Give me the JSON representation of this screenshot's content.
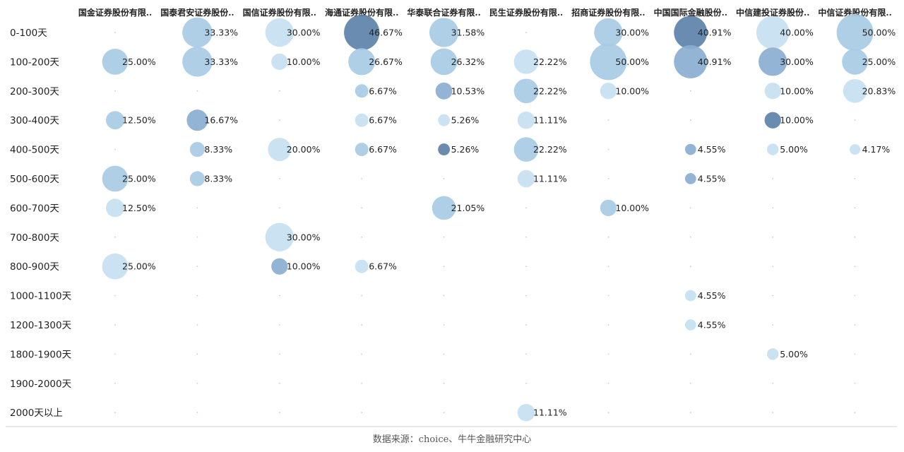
{
  "source_note": "数据来源：choice、牛牛金融研究中心",
  "chart_data": {
    "type": "bubble-matrix",
    "columns": [
      "国金证券股份有限..",
      "国泰君安证券股份..",
      "国信证券股份有限..",
      "海通证券股份有限..",
      "华泰联合证券有限..",
      "民生证券股份有限..",
      "招商证券股份有限..",
      "中国国际金融股份..",
      "中信建投证券股份..",
      "中信证券股份有限.."
    ],
    "rows": [
      "0-100天",
      "100-200天",
      "200-300天",
      "300-400天",
      "400-500天",
      "500-600天",
      "600-700天",
      "700-800天",
      "800-900天",
      "1000-1100天",
      "1200-1300天",
      "1800-1900天",
      "1900-2000天",
      "2000天以上"
    ],
    "value_unit": "%",
    "colors": {
      "light": "#c6dff0",
      "mid": "#a8cbe5",
      "dark": "#8aaed0",
      "darkest": "#5e82aa",
      "dot": "#c9c9c9"
    },
    "cells": [
      {
        "row": 0,
        "col": 1,
        "value": 33.33,
        "label": "33.33%",
        "shade": "mid"
      },
      {
        "row": 0,
        "col": 2,
        "value": 30.0,
        "label": "30.00%",
        "shade": "light"
      },
      {
        "row": 0,
        "col": 3,
        "value": 46.67,
        "label": "46.67%",
        "shade": "darkest"
      },
      {
        "row": 0,
        "col": 4,
        "value": 31.58,
        "label": "31.58%",
        "shade": "mid"
      },
      {
        "row": 0,
        "col": 6,
        "value": 30.0,
        "label": "30.00%",
        "shade": "mid"
      },
      {
        "row": 0,
        "col": 7,
        "value": 40.91,
        "label": "40.91%",
        "shade": "darkest"
      },
      {
        "row": 0,
        "col": 8,
        "value": 40.0,
        "label": "40.00%",
        "shade": "light"
      },
      {
        "row": 0,
        "col": 9,
        "value": 50.0,
        "label": "50.00%",
        "shade": "mid"
      },
      {
        "row": 1,
        "col": 0,
        "value": 25.0,
        "label": "25.00%",
        "shade": "mid"
      },
      {
        "row": 1,
        "col": 1,
        "value": 33.33,
        "label": "33.33%",
        "shade": "mid"
      },
      {
        "row": 1,
        "col": 2,
        "value": 10.0,
        "label": "10.00%",
        "shade": "light"
      },
      {
        "row": 1,
        "col": 3,
        "value": 26.67,
        "label": "26.67%",
        "shade": "mid"
      },
      {
        "row": 1,
        "col": 4,
        "value": 26.32,
        "label": "26.32%",
        "shade": "mid"
      },
      {
        "row": 1,
        "col": 5,
        "value": 22.22,
        "label": "22.22%",
        "shade": "light"
      },
      {
        "row": 1,
        "col": 6,
        "value": 50.0,
        "label": "50.00%",
        "shade": "mid"
      },
      {
        "row": 1,
        "col": 7,
        "value": 40.91,
        "label": "40.91%",
        "shade": "dark"
      },
      {
        "row": 1,
        "col": 8,
        "value": 30.0,
        "label": "30.00%",
        "shade": "dark"
      },
      {
        "row": 1,
        "col": 9,
        "value": 25.0,
        "label": "25.00%",
        "shade": "mid"
      },
      {
        "row": 2,
        "col": 3,
        "value": 6.67,
        "label": "6.67%",
        "shade": "mid"
      },
      {
        "row": 2,
        "col": 4,
        "value": 10.53,
        "label": "10.53%",
        "shade": "dark"
      },
      {
        "row": 2,
        "col": 5,
        "value": 22.22,
        "label": "22.22%",
        "shade": "mid"
      },
      {
        "row": 2,
        "col": 6,
        "value": 10.0,
        "label": "10.00%",
        "shade": "light"
      },
      {
        "row": 2,
        "col": 8,
        "value": 10.0,
        "label": "10.00%",
        "shade": "light"
      },
      {
        "row": 2,
        "col": 9,
        "value": 20.83,
        "label": "20.83%",
        "shade": "light"
      },
      {
        "row": 3,
        "col": 0,
        "value": 12.5,
        "label": "12.50%",
        "shade": "mid"
      },
      {
        "row": 3,
        "col": 1,
        "value": 16.67,
        "label": "16.67%",
        "shade": "dark"
      },
      {
        "row": 3,
        "col": 3,
        "value": 6.67,
        "label": "6.67%",
        "shade": "light"
      },
      {
        "row": 3,
        "col": 4,
        "value": 5.26,
        "label": "5.26%",
        "shade": "light"
      },
      {
        "row": 3,
        "col": 5,
        "value": 11.11,
        "label": "11.11%",
        "shade": "light"
      },
      {
        "row": 3,
        "col": 8,
        "value": 10.0,
        "label": "10.00%",
        "shade": "darkest"
      },
      {
        "row": 4,
        "col": 1,
        "value": 8.33,
        "label": "8.33%",
        "shade": "mid"
      },
      {
        "row": 4,
        "col": 2,
        "value": 20.0,
        "label": "20.00%",
        "shade": "light"
      },
      {
        "row": 4,
        "col": 3,
        "value": 6.67,
        "label": "6.67%",
        "shade": "mid"
      },
      {
        "row": 4,
        "col": 4,
        "value": 5.26,
        "label": "5.26%",
        "shade": "darkest"
      },
      {
        "row": 4,
        "col": 5,
        "value": 22.22,
        "label": "22.22%",
        "shade": "mid"
      },
      {
        "row": 4,
        "col": 7,
        "value": 4.55,
        "label": "4.55%",
        "shade": "dark"
      },
      {
        "row": 4,
        "col": 8,
        "value": 5.0,
        "label": "5.00%",
        "shade": "light"
      },
      {
        "row": 4,
        "col": 9,
        "value": 4.17,
        "label": "4.17%",
        "shade": "light"
      },
      {
        "row": 5,
        "col": 0,
        "value": 25.0,
        "label": "25.00%",
        "shade": "mid"
      },
      {
        "row": 5,
        "col": 1,
        "value": 8.33,
        "label": "8.33%",
        "shade": "mid"
      },
      {
        "row": 5,
        "col": 5,
        "value": 11.11,
        "label": "11.11%",
        "shade": "light"
      },
      {
        "row": 5,
        "col": 7,
        "value": 4.55,
        "label": "4.55%",
        "shade": "dark"
      },
      {
        "row": 6,
        "col": 0,
        "value": 12.5,
        "label": "12.50%",
        "shade": "light"
      },
      {
        "row": 6,
        "col": 4,
        "value": 21.05,
        "label": "21.05%",
        "shade": "mid"
      },
      {
        "row": 6,
        "col": 6,
        "value": 10.0,
        "label": "10.00%",
        "shade": "mid"
      },
      {
        "row": 7,
        "col": 2,
        "value": 30.0,
        "label": "30.00%",
        "shade": "light"
      },
      {
        "row": 8,
        "col": 0,
        "value": 25.0,
        "label": "25.00%",
        "shade": "light"
      },
      {
        "row": 8,
        "col": 2,
        "value": 10.0,
        "label": "10.00%",
        "shade": "dark"
      },
      {
        "row": 8,
        "col": 3,
        "value": 6.67,
        "label": "6.67%",
        "shade": "light"
      },
      {
        "row": 9,
        "col": 7,
        "value": 4.55,
        "label": "4.55%",
        "shade": "light"
      },
      {
        "row": 10,
        "col": 7,
        "value": 4.55,
        "label": "4.55%",
        "shade": "light"
      },
      {
        "row": 11,
        "col": 8,
        "value": 5.0,
        "label": "5.00%",
        "shade": "light"
      },
      {
        "row": 13,
        "col": 5,
        "value": 11.11,
        "label": "11.11%",
        "shade": "light"
      }
    ]
  }
}
